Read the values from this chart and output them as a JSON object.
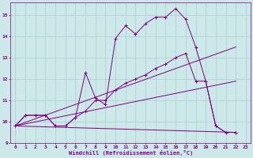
{
  "xlabel": "Windchill (Refroidissement éolien,°C)",
  "background_color": "#cce8e8",
  "grid_color": "#aacfcf",
  "line_color": "#800080",
  "xlim": [
    -0.5,
    23.5
  ],
  "ylim": [
    9.0,
    15.6
  ],
  "xticks": [
    0,
    1,
    2,
    3,
    4,
    5,
    6,
    7,
    8,
    9,
    10,
    11,
    12,
    13,
    14,
    15,
    16,
    17,
    18,
    19,
    20,
    21,
    22,
    23
  ],
  "yticks": [
    9,
    10,
    11,
    12,
    13,
    14,
    15
  ],
  "series1_x": [
    0,
    1,
    2,
    3,
    4,
    5,
    6,
    7,
    8,
    9,
    10,
    11,
    12,
    13,
    14,
    15,
    16,
    17,
    18,
    19,
    20,
    21,
    22
  ],
  "series1_y": [
    9.8,
    10.3,
    10.3,
    10.3,
    9.8,
    9.8,
    10.2,
    12.3,
    11.1,
    10.8,
    13.9,
    14.5,
    14.1,
    14.6,
    14.9,
    14.9,
    15.3,
    14.8,
    13.5,
    11.9,
    9.8,
    9.5,
    9.5
  ],
  "series2_x": [
    0,
    1,
    2,
    3,
    4,
    5,
    6,
    7,
    8,
    9,
    10,
    11,
    12,
    13,
    14,
    15,
    16,
    17,
    18,
    19,
    20,
    21,
    22
  ],
  "series2_y": [
    9.8,
    10.3,
    10.3,
    10.3,
    9.8,
    9.8,
    10.2,
    10.5,
    11.0,
    11.0,
    11.5,
    11.8,
    12.0,
    12.2,
    12.5,
    12.7,
    13.0,
    13.2,
    11.9,
    11.9,
    9.8,
    9.5,
    9.5
  ],
  "line3": [
    [
      0,
      22
    ],
    [
      9.8,
      13.5
    ]
  ],
  "line4": [
    [
      0,
      22
    ],
    [
      9.8,
      11.9
    ]
  ],
  "line5": [
    [
      0,
      22
    ],
    [
      9.8,
      9.5
    ]
  ]
}
